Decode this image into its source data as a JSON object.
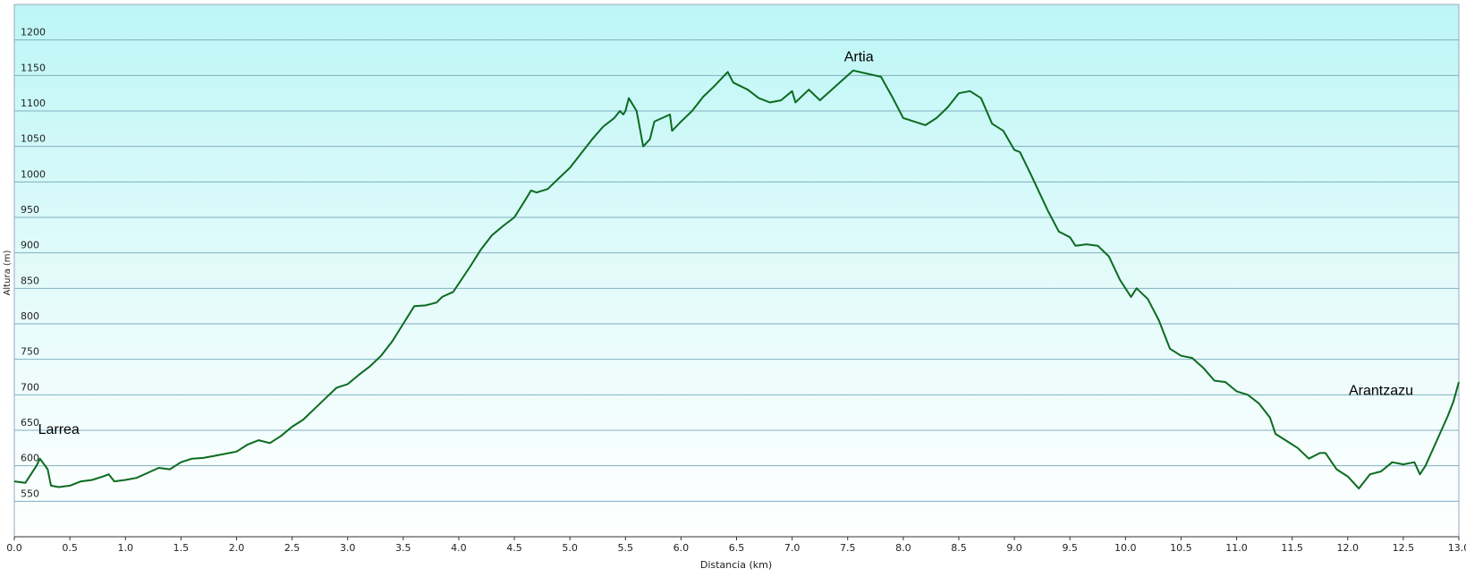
{
  "chart_data": {
    "type": "line",
    "xlabel": "Distancia  (km)",
    "ylabel": "Altura (m)",
    "xlim": [
      0,
      13
    ],
    "ylim": [
      500,
      1250
    ],
    "xticks": [
      {
        "value": 0,
        "label": "0.0"
      },
      0.5,
      {
        "value": 1,
        "label": "1.0"
      },
      1.5,
      {
        "value": 2,
        "label": "2.0"
      },
      2.5,
      {
        "value": 3,
        "label": "3.0"
      },
      3.5,
      {
        "value": 4,
        "label": "4.0"
      },
      4.5,
      {
        "value": 5,
        "label": "5.0"
      },
      5.5,
      {
        "value": 6,
        "label": "6.0"
      },
      6.5,
      {
        "value": 7,
        "label": "7.0"
      },
      7.5,
      {
        "value": 8,
        "label": "8.0"
      },
      8.5,
      {
        "value": 9,
        "label": "9.0"
      },
      9.5,
      {
        "value": 10,
        "label": "10.0"
      },
      10.5,
      {
        "value": 11,
        "label": "11.0"
      },
      11.5,
      {
        "value": 12,
        "label": "12.0"
      },
      12.5,
      {
        "value": 13,
        "label": "13.0"
      }
    ],
    "yticks": [
      550,
      600,
      650,
      700,
      750,
      800,
      850,
      900,
      950,
      1000,
      1050,
      1100,
      1150,
      1200
    ],
    "grid": true,
    "x": [
      0,
      0.1,
      0.2,
      0.23,
      0.3,
      0.33,
      0.4,
      0.5,
      0.6,
      0.7,
      0.8,
      0.85,
      0.9,
      1.0,
      1.1,
      1.2,
      1.3,
      1.4,
      1.5,
      1.6,
      1.7,
      1.8,
      2.0,
      2.1,
      2.2,
      2.3,
      2.4,
      2.5,
      2.6,
      2.7,
      2.8,
      2.9,
      3.0,
      3.1,
      3.2,
      3.3,
      3.4,
      3.5,
      3.6,
      3.7,
      3.8,
      3.85,
      3.95,
      4.1,
      4.2,
      4.3,
      4.4,
      4.5,
      4.6,
      4.65,
      4.7,
      4.8,
      4.9,
      5.0,
      5.1,
      5.2,
      5.3,
      5.4,
      5.45,
      5.48,
      5.5,
      5.53,
      5.6,
      5.66,
      5.72,
      5.76,
      5.9,
      5.92,
      6.0,
      6.1,
      6.2,
      6.3,
      6.42,
      6.47,
      6.6,
      6.7,
      6.8,
      6.9,
      7.0,
      7.03,
      7.15,
      7.25,
      7.55,
      7.8,
      7.9,
      8.0,
      8.2,
      8.3,
      8.4,
      8.5,
      8.6,
      8.7,
      8.8,
      8.9,
      9.0,
      9.05,
      9.15,
      9.3,
      9.4,
      9.5,
      9.55,
      9.65,
      9.75,
      9.85,
      9.95,
      10.05,
      10.1,
      10.2,
      10.3,
      10.4,
      10.5,
      10.6,
      10.7,
      10.8,
      10.9,
      11.0,
      11.1,
      11.2,
      11.3,
      11.35,
      11.45,
      11.55,
      11.65,
      11.75,
      11.8,
      11.9,
      12.0,
      12.1,
      12.2,
      12.3,
      12.4,
      12.5,
      12.6,
      12.65,
      12.7,
      12.8,
      12.9,
      12.95,
      13.0
    ],
    "series": [
      {
        "color": "#0b6b1f",
        "values": [
          578,
          576,
          600,
          610,
          595,
          572,
          570,
          572,
          578,
          580,
          585,
          588,
          578,
          580,
          583,
          590,
          597,
          595,
          605,
          610,
          611,
          614,
          620,
          630,
          636,
          632,
          642,
          655,
          665,
          680,
          695,
          710,
          715,
          728,
          740,
          755,
          775,
          800,
          825,
          826,
          830,
          838,
          845,
          880,
          905,
          925,
          938,
          950,
          975,
          988,
          985,
          990,
          1005,
          1020,
          1040,
          1060,
          1078,
          1090,
          1100,
          1095,
          1100,
          1118,
          1100,
          1050,
          1060,
          1085,
          1095,
          1072,
          1085,
          1100,
          1120,
          1135,
          1155,
          1140,
          1130,
          1118,
          1112,
          1115,
          1128,
          1112,
          1130,
          1115,
          1157,
          1148,
          1120,
          1090,
          1080,
          1090,
          1105,
          1125,
          1128,
          1118,
          1082,
          1072,
          1045,
          1042,
          1010,
          960,
          930,
          922,
          910,
          912,
          910,
          895,
          862,
          838,
          850,
          835,
          805,
          765,
          755,
          752,
          738,
          720,
          718,
          705,
          700,
          688,
          668,
          645,
          635,
          625,
          610,
          618,
          618,
          595,
          585,
          568,
          588,
          592,
          605,
          602,
          605,
          588,
          600,
          635,
          670,
          690,
          718
        ]
      }
    ],
    "annotations": [
      {
        "text": "Larrea",
        "x": 0.4,
        "y": 650
      },
      {
        "text": "Artia",
        "x": 7.6,
        "y": 1175
      },
      {
        "text": "Arantzazu",
        "x": 12.3,
        "y": 705
      }
    ]
  }
}
